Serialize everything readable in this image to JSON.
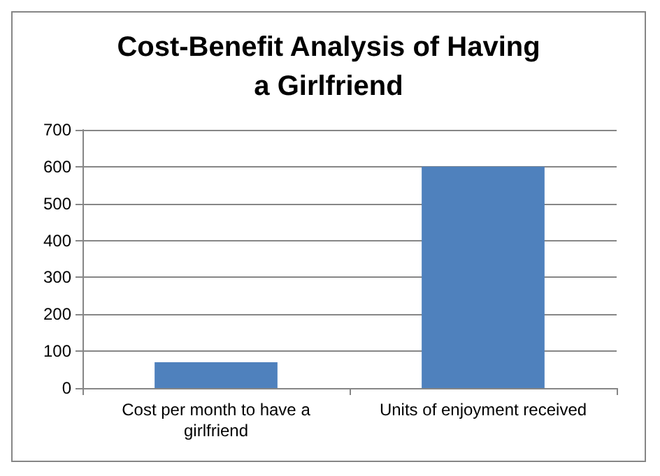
{
  "chart_data": {
    "type": "bar",
    "title": "Cost-Benefit Analysis of Having\na Girlfriend",
    "categories": [
      "Cost per month to have a\ngirlfriend",
      "Units of enjoyment received"
    ],
    "values": [
      70,
      600
    ],
    "color": "#4f81bd",
    "ylim": [
      0,
      700
    ],
    "yticks": [
      0,
      100,
      200,
      300,
      400,
      500,
      600,
      700
    ],
    "grid": "y"
  }
}
